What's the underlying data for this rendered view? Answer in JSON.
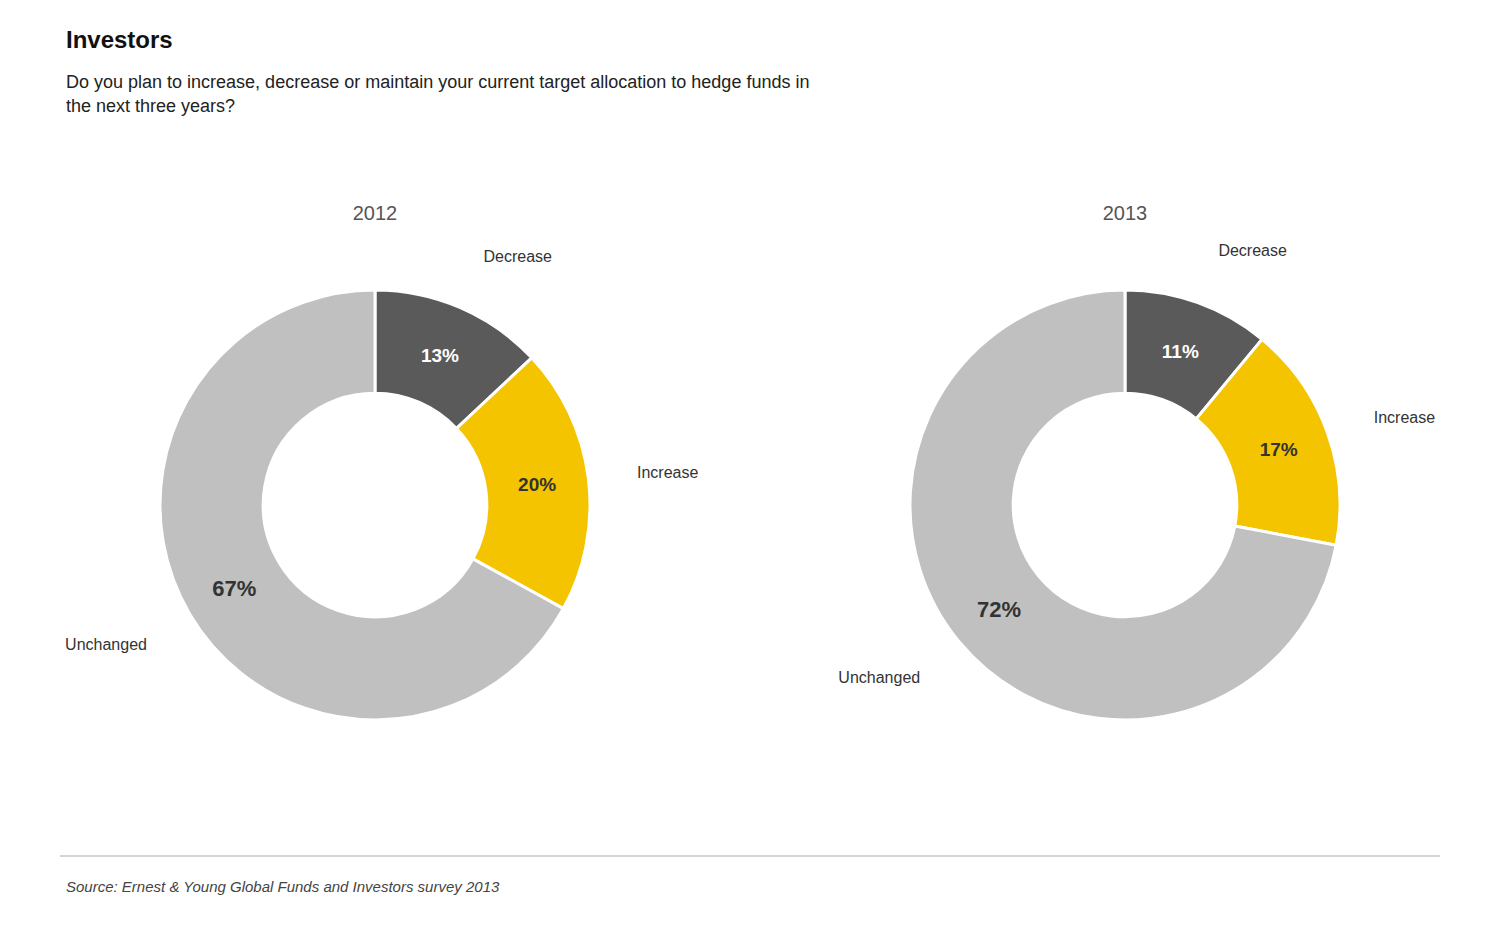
{
  "title": "Investors",
  "subtitle": "Do you plan to increase, decrease or maintain your current target allocation to hedge funds in\nthe next three years?",
  "annotations": [
    "Source: Ernest & Young Global Funds and Investors survey 2013"
  ],
  "chart_data": [
    {
      "type": "donut",
      "title": "2012",
      "categories": [
        "Decrease",
        "Increase",
        "Unchanged"
      ],
      "values": [
        13,
        20,
        67
      ],
      "value_labels": [
        "13%",
        "20%",
        "67%"
      ],
      "colors": [
        "#5a5a5a",
        "#f5c400",
        "#c0c0c0"
      ],
      "data_labels": true
    },
    {
      "type": "donut",
      "title": "2013",
      "categories": [
        "Decrease",
        "Increase",
        "Unchanged"
      ],
      "values": [
        11,
        17,
        72
      ],
      "value_labels": [
        "11%",
        "17%",
        "72%"
      ],
      "colors": [
        "#5a5a5a",
        "#f5c400",
        "#c0c0c0"
      ],
      "data_labels": true
    }
  ]
}
